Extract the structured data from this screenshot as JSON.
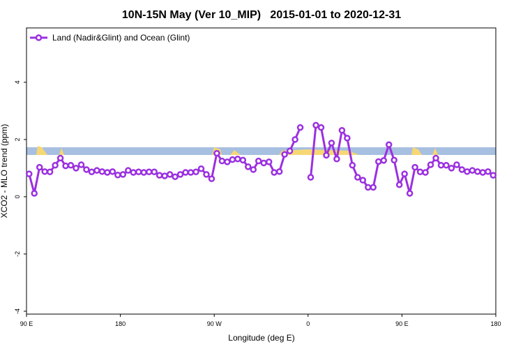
{
  "chart_data": {
    "type": "line",
    "title": "10N-15N May (Ver 10_MIP)   2015-01-01 to 2020-12-31",
    "xlabel": "Longitude (deg E)",
    "ylabel": "XCO2 - MLO trend (ppm)",
    "xlim": [
      90,
      540
    ],
    "ylim": [
      -4.1,
      5.9
    ],
    "xticks": [
      {
        "value": 90,
        "label": "90 E"
      },
      180,
      {
        "value": 270,
        "label": "90 W"
      },
      {
        "value": 360,
        "label": "0"
      },
      {
        "value": 450,
        "label": "90 E"
      },
      {
        "value": 540,
        "label": "180"
      }
    ],
    "yticks": [
      -4,
      -2,
      0,
      2,
      4
    ],
    "legend": "upper left",
    "x": [
      92.5,
      97.5,
      102.5,
      107.5,
      112.5,
      117.5,
      122.5,
      127.5,
      132.5,
      137.5,
      142.5,
      147.5,
      152.5,
      157.5,
      162.5,
      167.5,
      172.5,
      177.5,
      182.5,
      187.5,
      192.5,
      197.5,
      202.5,
      207.5,
      212.5,
      217.5,
      222.5,
      227.5,
      232.5,
      237.5,
      242.5,
      247.5,
      252.5,
      257.5,
      262.5,
      267.5,
      272.5,
      277.5,
      282.5,
      287.5,
      292.5,
      297.5,
      302.5,
      307.5,
      312.5,
      317.5,
      322.5,
      327.5,
      332.5,
      337.5,
      342.5,
      347.5,
      352.5,
      357.5,
      362.5,
      367.5,
      372.5,
      377.5,
      382.5,
      387.5,
      392.5,
      397.5,
      402.5,
      407.5,
      412.5,
      417.5,
      422.5,
      427.5,
      432.5,
      437.5,
      442.5,
      447.5,
      452.5,
      457.5,
      462.5,
      467.5,
      472.5,
      477.5,
      482.5,
      487.5,
      492.5,
      497.5,
      502.5,
      507.5,
      512.5,
      517.5,
      522.5,
      527.5,
      532.5,
      537.5
    ],
    "series": [
      {
        "name": "Land (Nadir&Glint) and Ocean (Glint)",
        "color": "#9b30e0",
        "values": [
          0.8,
          0.12,
          1.03,
          0.88,
          0.87,
          1.1,
          1.35,
          1.08,
          1.1,
          1.0,
          1.12,
          0.95,
          0.87,
          0.92,
          0.88,
          0.85,
          0.88,
          0.76,
          0.78,
          0.92,
          0.85,
          0.87,
          0.85,
          0.87,
          0.87,
          0.75,
          0.73,
          0.78,
          0.7,
          0.78,
          0.85,
          0.85,
          0.87,
          0.98,
          0.78,
          0.63,
          1.52,
          1.25,
          1.22,
          1.3,
          1.32,
          1.28,
          1.05,
          0.95,
          1.25,
          1.18,
          1.22,
          0.85,
          0.88,
          1.48,
          1.6,
          2.0,
          2.42,
          null,
          0.68,
          2.5,
          2.42,
          1.45,
          1.88,
          1.32,
          2.32,
          2.05,
          1.1,
          0.68,
          0.58,
          0.33,
          0.33,
          1.23,
          1.27,
          1.82,
          1.28,
          0.42,
          0.8,
          0.12,
          1.03,
          0.87,
          0.85,
          1.12,
          1.35,
          1.1,
          1.1,
          1.0,
          1.12,
          0.95,
          0.88,
          0.92,
          0.88,
          0.85,
          0.88,
          0.75
        ]
      }
    ]
  }
}
